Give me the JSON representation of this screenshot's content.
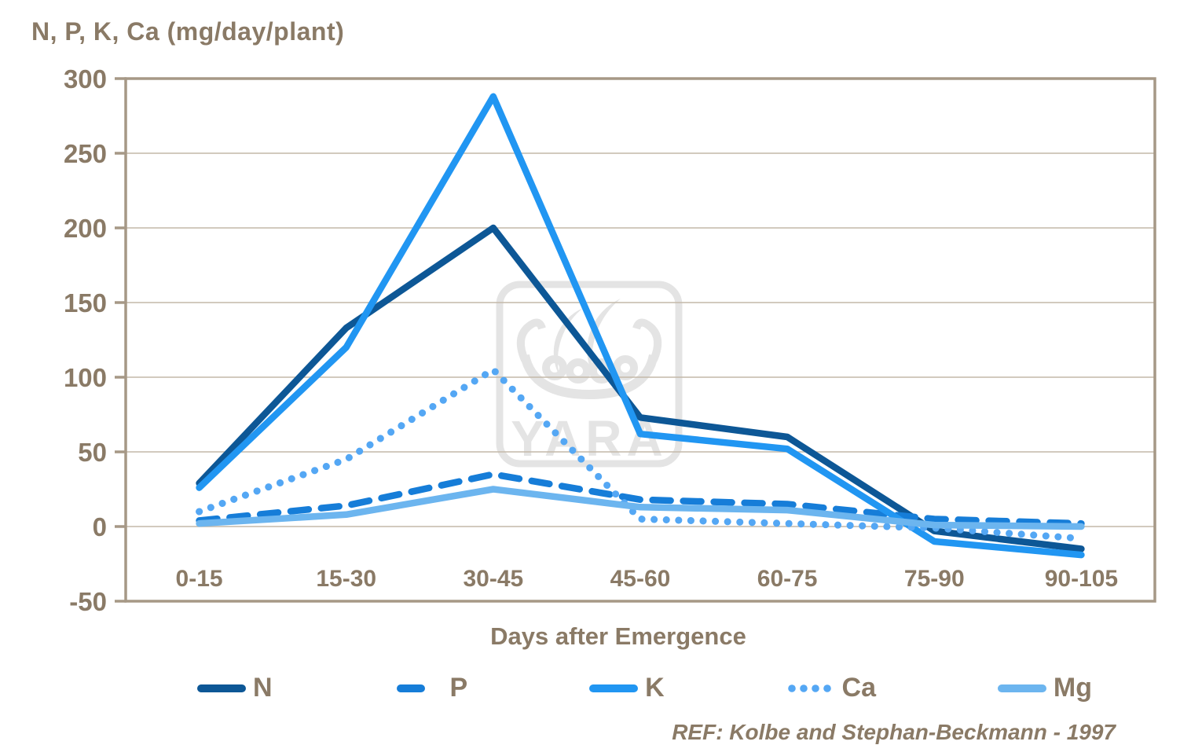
{
  "title": "N, P, K, Ca (mg/day/plant)",
  "xlabel": "Days after Emergence",
  "ref": "REF: Kolbe and Stephan-Beckmann - 1997",
  "watermark": {
    "text": "YARA"
  },
  "colors": {
    "text": "#8a7a66",
    "grid": "#c4b9a9",
    "border": "#a69886",
    "watermark": "#e4e4e4",
    "background": "#ffffff"
  },
  "chart_data": {
    "type": "line",
    "categories": [
      "0-15",
      "15-30",
      "30-45",
      "45-60",
      "60-75",
      "75-90",
      "90-105"
    ],
    "series": [
      {
        "name": "N",
        "style": "solid",
        "color": "#0d5796",
        "values": [
          29,
          133,
          200,
          73,
          60,
          -3,
          -15
        ]
      },
      {
        "name": "P",
        "style": "dashed",
        "color": "#167dd8",
        "values": [
          4,
          14,
          35,
          18,
          15,
          5,
          2
        ]
      },
      {
        "name": "K",
        "style": "solid",
        "color": "#2196f2",
        "values": [
          26,
          120,
          288,
          62,
          52,
          -10,
          -19
        ]
      },
      {
        "name": "Ca",
        "style": "dotted",
        "color": "#54a7f4",
        "values": [
          10,
          45,
          105,
          5,
          2,
          -1,
          -8
        ]
      },
      {
        "name": "Mg",
        "style": "solid",
        "color": "#6cb5ef",
        "values": [
          2,
          8,
          25,
          13,
          11,
          1,
          0
        ]
      }
    ],
    "title": "N, P, K, Ca (mg/day/plant)",
    "xlabel": "Days after Emergence",
    "ylabel": "",
    "ylim": [
      -50,
      300
    ],
    "ytick_step": 50,
    "grid": true,
    "legend_position": "bottom"
  }
}
